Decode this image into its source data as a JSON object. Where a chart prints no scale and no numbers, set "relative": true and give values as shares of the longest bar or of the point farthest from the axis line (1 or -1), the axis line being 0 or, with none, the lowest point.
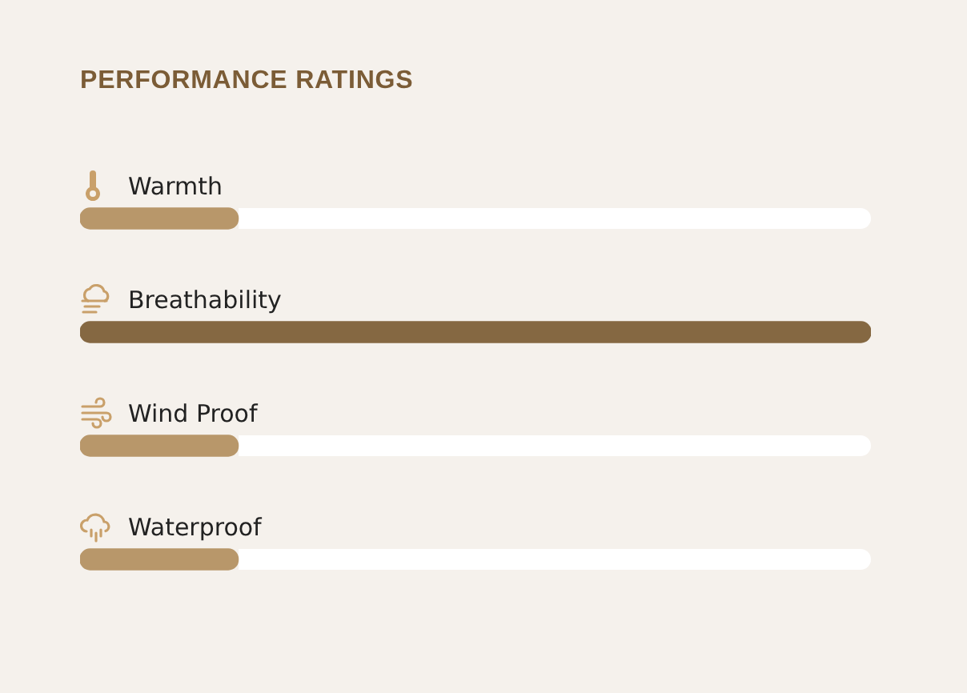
{
  "chart_data": {
    "type": "bar",
    "title": "PERFORMANCE RATINGS",
    "orientation": "horizontal",
    "relative": true,
    "categories": [
      "Warmth",
      "Breathability",
      "Wind Proof",
      "Waterproof"
    ],
    "values": [
      0.2,
      1,
      0.2,
      0.2
    ],
    "colors": [
      "#b8976a",
      "#856842",
      "#b8976a",
      "#b8976a"
    ]
  }
}
